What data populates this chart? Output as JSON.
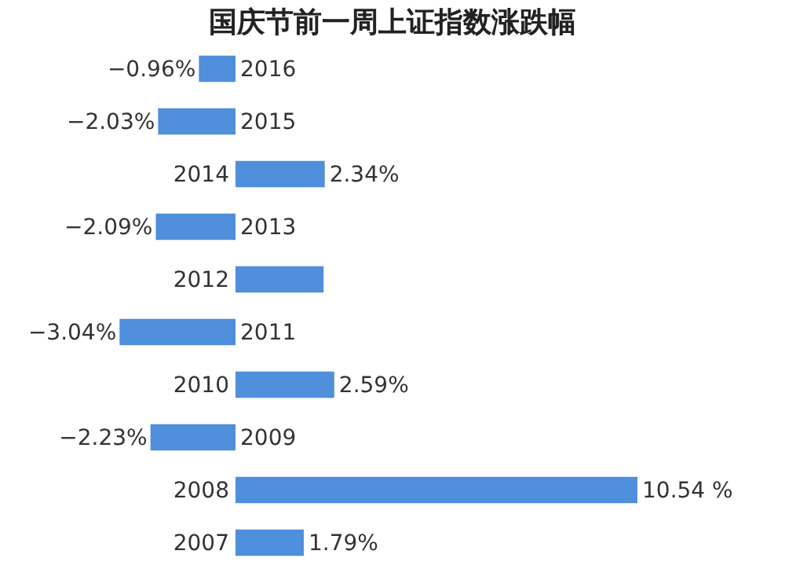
{
  "chart_data": {
    "type": "bar",
    "orientation": "horizontal",
    "title": "国庆节前一周上证指数涨跌幅",
    "categories": [
      "2016",
      "2015",
      "2014",
      "2013",
      "2012",
      "2011",
      "2010",
      "2009",
      "2008",
      "2007"
    ],
    "values": [
      -0.96,
      -2.03,
      2.34,
      -2.09,
      2.31,
      -3.04,
      2.59,
      -2.23,
      10.54,
      1.79
    ],
    "value_labels": [
      "−0.96%",
      "−2.03%",
      "2.34%",
      "−2.09%",
      null,
      "−3.04%",
      "2.59%",
      "−2.23%",
      "10.54 %",
      "1.79%"
    ],
    "color": "#4f8fdb"
  }
}
